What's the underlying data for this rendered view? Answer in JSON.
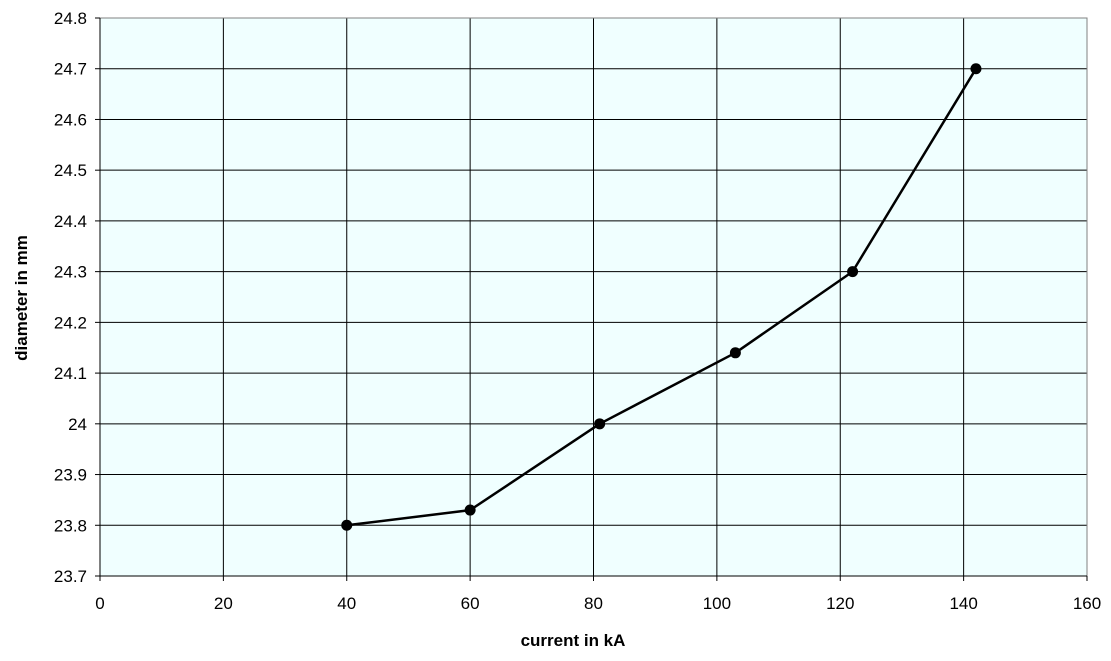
{
  "chart_data": {
    "type": "line",
    "title": "",
    "xlabel": "current in kA",
    "ylabel": "diameter in mm",
    "xlim": [
      0,
      160
    ],
    "ylim": [
      23.7,
      24.8
    ],
    "x_ticks": [
      0,
      20,
      40,
      60,
      80,
      100,
      120,
      140,
      160
    ],
    "x_tick_labels": [
      "0",
      "20",
      "40",
      "60",
      "80",
      "100",
      "120",
      "140",
      "160"
    ],
    "y_ticks": [
      23.7,
      23.8,
      23.9,
      24.0,
      24.1,
      24.2,
      24.3,
      24.4,
      24.5,
      24.6,
      24.7,
      24.8
    ],
    "y_tick_labels": [
      "23.7",
      "23.8",
      "23.9",
      "24",
      "24.1",
      "24.2",
      "24.3",
      "24.4",
      "24.5",
      "24.6",
      "24.7",
      "24.8"
    ],
    "grid": true,
    "legend": false,
    "series": [
      {
        "x": [
          40,
          60,
          81,
          103,
          122,
          142
        ],
        "y": [
          23.8,
          23.83,
          24.0,
          24.14,
          24.3,
          24.7
        ]
      }
    ],
    "colors": {
      "plot_background": "#f0ffff",
      "gridline": "#000000",
      "line": "#000000",
      "marker": "#000000"
    }
  }
}
